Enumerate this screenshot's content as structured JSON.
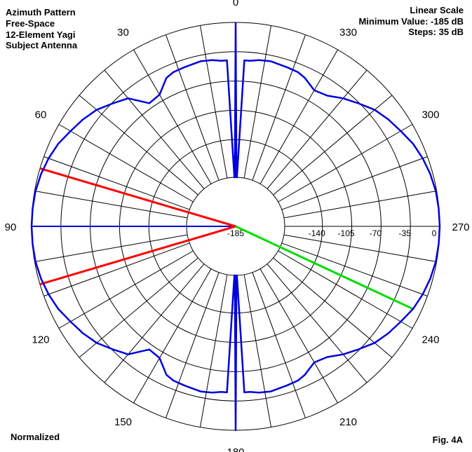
{
  "header_left": [
    "Azimuth Pattern",
    "Free-Space",
    "12-Element Yagi",
    "Subject Antenna"
  ],
  "header_right": [
    "Linear Scale",
    "Minimum Value: -185 dB",
    "Steps: 35 dB"
  ],
  "footer_left": "Normalized",
  "footer_right": "Fig. 4A",
  "colors": {
    "pattern": "#0000dd",
    "beamwidth": "#ff0000",
    "marker": "#00dd00",
    "grid": "#000000"
  },
  "chart_data": {
    "type": "polar",
    "title": "Azimuth Pattern",
    "scale": "linear",
    "min_value_db": -185,
    "step_db": 35,
    "rlim": [
      -185,
      0
    ],
    "angle_direction": "counterclockwise",
    "zero_angle": "top",
    "angle_ticks": [
      0,
      30,
      60,
      90,
      120,
      150,
      180,
      210,
      240,
      270,
      300,
      330
    ],
    "angle_tick_labels": [
      "0",
      "30",
      "60",
      "90",
      "120",
      "150",
      "180",
      "210",
      "240",
      "270",
      "300",
      "330"
    ],
    "radial_gridlines_deg": 10,
    "radial_ticks": [
      -185,
      -140,
      -105,
      -70,
      -35,
      0
    ],
    "radial_tick_labels": [
      "-185",
      "-140",
      "-105",
      "-70",
      "-35",
      "0"
    ],
    "pattern_db": {
      "azimuth_deg": [
        0,
        1,
        1.5,
        3,
        5,
        8,
        12,
        18,
        22,
        25,
        30,
        35,
        40,
        45,
        50,
        55,
        60,
        65,
        70,
        75,
        80,
        85,
        90,
        95,
        100,
        105,
        110,
        115,
        120,
        125,
        130,
        135,
        140,
        145,
        150,
        155,
        158,
        162,
        168,
        172,
        175,
        177,
        178.5,
        179,
        180,
        181,
        181.5,
        183,
        185,
        188,
        192,
        198,
        202,
        205,
        210,
        215,
        220,
        225,
        230,
        235,
        240,
        245,
        250,
        255,
        260,
        265,
        270,
        275,
        280,
        285,
        290,
        295,
        300,
        305,
        310,
        315,
        320,
        325,
        330,
        335,
        338,
        342,
        348,
        352,
        355,
        357,
        358.5,
        359,
        360
      ],
      "gain_db": [
        0,
        -185,
        -185,
        -45,
        -45,
        -43,
        -42,
        -44,
        -45,
        -48,
        -62,
        -64,
        -44,
        -36,
        -27,
        -21,
        -16,
        -10,
        -6,
        -3,
        -1,
        -0.3,
        0,
        -0.3,
        -1,
        -3,
        -6,
        -10,
        -16,
        -21,
        -27,
        -36,
        -44,
        -64,
        -62,
        -48,
        -45,
        -44,
        -42,
        -43,
        -45,
        -45,
        -185,
        -185,
        0,
        -185,
        -185,
        -45,
        -45,
        -43,
        -42,
        -44,
        -45,
        -48,
        -56,
        -53,
        -44,
        -36,
        -27,
        -21,
        -16,
        -10,
        -6,
        -3,
        -1,
        -0.3,
        0,
        -0.3,
        -1,
        -3,
        -6,
        -10,
        -16,
        -21,
        -27,
        -36,
        -44,
        -53,
        -56,
        -48,
        -45,
        -44,
        -42,
        -43,
        -45,
        -45,
        -185,
        -185,
        0
      ]
    },
    "beamwidth_lines_deg": [
      73.5,
      106.5
    ],
    "direction_line_deg": [
      90,
      270
    ],
    "marker_line": {
      "azimuth_deg": 245,
      "gain_db": -10
    }
  }
}
